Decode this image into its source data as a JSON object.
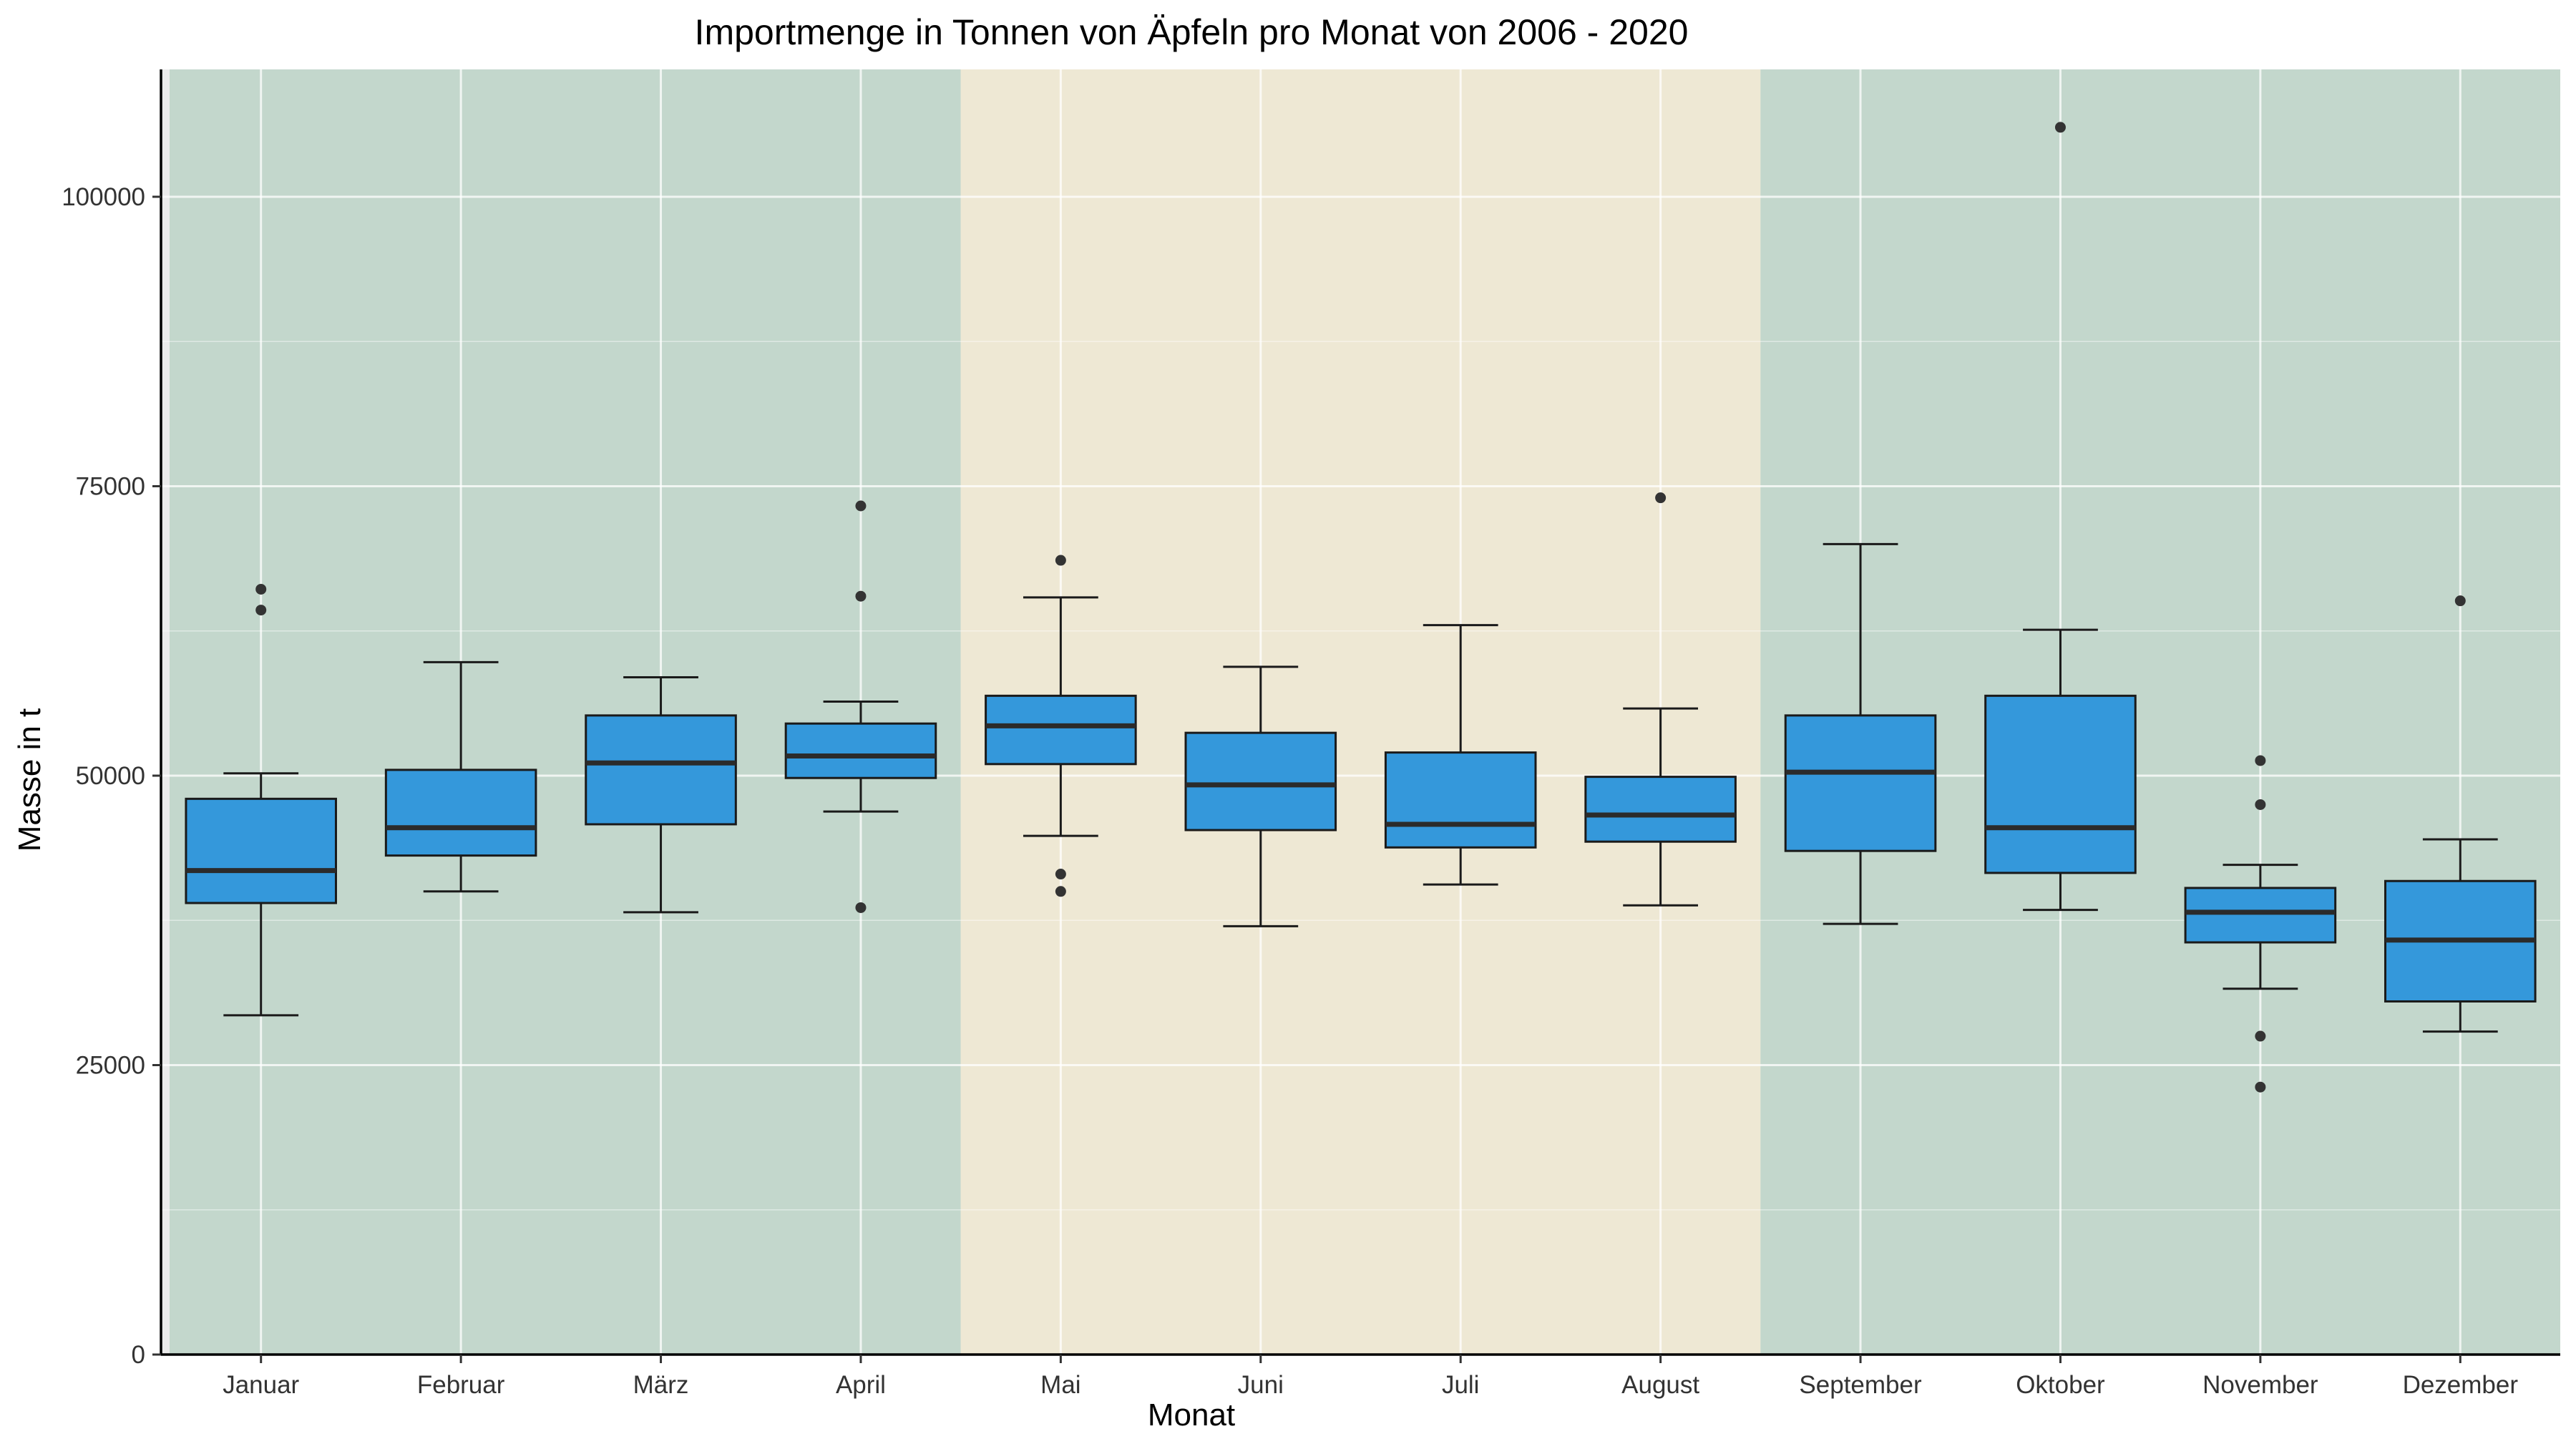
{
  "chart_data": {
    "type": "boxplot",
    "title": "Importmenge in Tonnen von Äpfeln pro Monat von 2006 - 2020",
    "xlabel": "Monat",
    "ylabel": "Masse in t",
    "ylim": [
      0,
      111000
    ],
    "yticks": [
      0,
      25000,
      50000,
      75000,
      100000
    ],
    "ytick_labels": [
      "0",
      "25000",
      "50000",
      "75000",
      "100000"
    ],
    "grid": true,
    "legend": "none",
    "box_color": "#3498db",
    "background_bands": [
      {
        "from": "Januar",
        "to": "April",
        "color": "#c3d7cc"
      },
      {
        "from": "Mai",
        "to": "August",
        "color": "#eee8d4"
      },
      {
        "from": "September",
        "to": "Dezember",
        "color": "#c3d7cc"
      }
    ],
    "categories": [
      "Januar",
      "Februar",
      "März",
      "April",
      "Mai",
      "Juni",
      "Juli",
      "August",
      "September",
      "Oktober",
      "November",
      "Dezember"
    ],
    "boxes": [
      {
        "lower_whisker": 29300,
        "q1": 39000,
        "median": 41800,
        "q3": 48000,
        "upper_whisker": 50200,
        "outliers": [
          64300,
          66100
        ]
      },
      {
        "lower_whisker": 40000,
        "q1": 43100,
        "median": 45500,
        "q3": 50500,
        "upper_whisker": 59800,
        "outliers": []
      },
      {
        "lower_whisker": 38200,
        "q1": 45800,
        "median": 51100,
        "q3": 55200,
        "upper_whisker": 58500,
        "outliers": []
      },
      {
        "lower_whisker": 46900,
        "q1": 49800,
        "median": 51700,
        "q3": 54500,
        "upper_whisker": 56400,
        "outliers": [
          38600,
          65500,
          73300
        ]
      },
      {
        "lower_whisker": 44800,
        "q1": 51000,
        "median": 54300,
        "q3": 56900,
        "upper_whisker": 65400,
        "outliers": [
          40000,
          41500,
          68600
        ]
      },
      {
        "lower_whisker": 37000,
        "q1": 45300,
        "median": 49200,
        "q3": 53700,
        "upper_whisker": 59400,
        "outliers": []
      },
      {
        "lower_whisker": 40600,
        "q1": 43800,
        "median": 45800,
        "q3": 52000,
        "upper_whisker": 63000,
        "outliers": []
      },
      {
        "lower_whisker": 38800,
        "q1": 44300,
        "median": 46600,
        "q3": 49900,
        "upper_whisker": 55800,
        "outliers": [
          74000
        ]
      },
      {
        "lower_whisker": 37200,
        "q1": 43500,
        "median": 50300,
        "q3": 55200,
        "upper_whisker": 70000,
        "outliers": []
      },
      {
        "lower_whisker": 38400,
        "q1": 41600,
        "median": 45500,
        "q3": 56900,
        "upper_whisker": 62600,
        "outliers": [
          106000
        ]
      },
      {
        "lower_whisker": 31600,
        "q1": 35600,
        "median": 38200,
        "q3": 40300,
        "upper_whisker": 42300,
        "outliers": [
          23100,
          27500,
          47500,
          51300
        ]
      },
      {
        "lower_whisker": 27900,
        "q1": 30500,
        "median": 35800,
        "q3": 40900,
        "upper_whisker": 44500,
        "outliers": [
          65100
        ]
      }
    ]
  }
}
